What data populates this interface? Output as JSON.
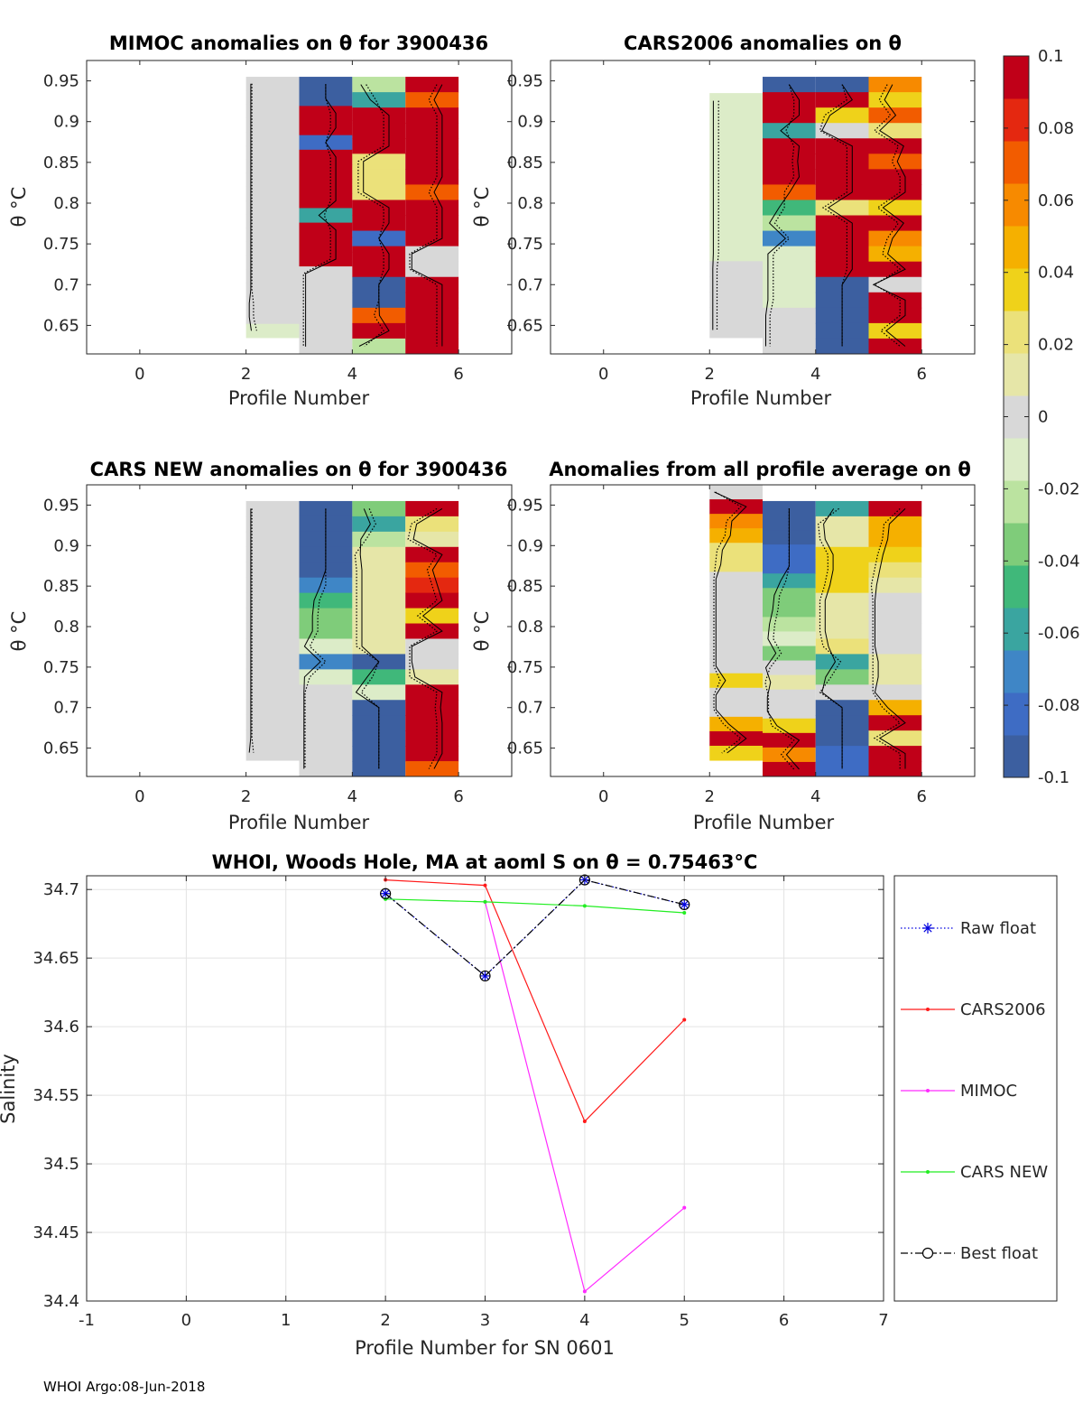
{
  "footer": "WHOI Argo:08-Jun-2018",
  "colorbar": {
    "ticks": [
      "0.1",
      "0.08",
      "0.06",
      "0.04",
      "0.02",
      "0",
      "-0.02",
      "-0.04",
      "-0.06",
      "-0.08",
      "-0.1"
    ],
    "range": [
      -0.1,
      0.1
    ],
    "colors": [
      "#3c5fa0",
      "#3e6cc4",
      "#3f86c6",
      "#3aa5a0",
      "#40b87a",
      "#7fcc7a",
      "#bbe3a0",
      "#dcecc8",
      "#d8d8d8",
      "#e6e6a8",
      "#ebe17a",
      "#efd21a",
      "#f5b000",
      "#f78a00",
      "#f25c00",
      "#e42810",
      "#c00018"
    ]
  },
  "panels": [
    {
      "title": "MIMOC anomalies on θ  for 3900436",
      "xlabel": "Profile Number",
      "ylabel": "θ °C",
      "xlim": [
        -1,
        7
      ],
      "ylim": [
        0.615,
        0.975
      ],
      "xticks": [
        "0",
        "2",
        "4",
        "6"
      ],
      "yticks": [
        "0.95",
        "0.9",
        "0.85",
        "0.8",
        "0.75",
        "0.7",
        "0.65"
      ],
      "columns": [
        {
          "profile": 2,
          "top": 0.955,
          "bottom": 0.635,
          "values": [
            0,
            0,
            0,
            0,
            0,
            0,
            0,
            0,
            0,
            0,
            0,
            0,
            0,
            0,
            0,
            0,
            -0.005,
            -0.005,
            -0.015
          ]
        },
        {
          "profile": 3,
          "top": 0.955,
          "bottom": 0.615,
          "values": [
            -0.09,
            -0.09,
            0.1,
            0.1,
            -0.085,
            0.1,
            0.1,
            0.1,
            0.1,
            -0.06,
            0.1,
            0.1,
            0.1,
            0.005,
            0.005,
            0.005,
            0.005,
            0.005,
            0.005
          ]
        },
        {
          "profile": 4,
          "top": 0.955,
          "bottom": 0.615,
          "values": [
            -0.025,
            -0.055,
            0.1,
            0.1,
            0.1,
            0.02,
            0.02,
            0.02,
            0.1,
            0.1,
            -0.085,
            0.1,
            0.1,
            -0.09,
            -0.09,
            0.07,
            0.1,
            -0.02
          ]
        },
        {
          "profile": 5,
          "top": 0.955,
          "bottom": 0.615,
          "values": [
            0.1,
            0.075,
            0.1,
            0.1,
            0.1,
            0.1,
            0.1,
            0.075,
            0.1,
            0.1,
            0.1,
            0.005,
            0.005,
            0.1,
            0.1,
            0.1,
            0.1,
            0.1
          ]
        }
      ]
    },
    {
      "title": "CARS2006 anomalies on θ",
      "xlabel": "Profile Number",
      "ylabel": "θ °C",
      "xlim": [
        -1,
        7
      ],
      "ylim": [
        0.615,
        0.975
      ],
      "xticks": [
        "0",
        "2",
        "4",
        "6"
      ],
      "yticks": [
        "0.95",
        "0.9",
        "0.85",
        "0.8",
        "0.75",
        "0.7",
        "0.65"
      ],
      "columns": [
        {
          "profile": 2,
          "top": 0.935,
          "bottom": 0.635,
          "values": [
            -0.01,
            -0.01,
            -0.01,
            -0.01,
            -0.01,
            -0.01,
            -0.01,
            -0.01,
            -0.01,
            -0.01,
            -0.01,
            -0.005,
            -0.005,
            -0.005,
            -0.005,
            -0.005
          ]
        },
        {
          "profile": 3,
          "top": 0.955,
          "bottom": 0.615,
          "values": [
            -0.09,
            0.1,
            0.1,
            -0.055,
            0.1,
            0.095,
            0.1,
            0.07,
            -0.05,
            -0.02,
            -0.07,
            -0.015,
            -0.015,
            -0.015,
            -0.015,
            -0.005,
            -0.005,
            -0.005
          ]
        },
        {
          "profile": 4,
          "top": 0.955,
          "bottom": 0.615,
          "values": [
            -0.09,
            0.1,
            0.03,
            0.005,
            0.1,
            0.1,
            0.1,
            0.1,
            0.025,
            0.1,
            0.1,
            0.1,
            0.1,
            -0.09,
            -0.09,
            -0.09,
            -0.09,
            -0.09
          ]
        },
        {
          "profile": 5,
          "top": 0.955,
          "bottom": 0.615,
          "values": [
            0.06,
            0.035,
            0.07,
            0.02,
            0.095,
            0.075,
            0.1,
            0.1,
            0.03,
            0.095,
            0.06,
            0.045,
            0.1,
            0.0,
            0.1,
            0.1,
            0.04,
            0.1
          ]
        }
      ]
    },
    {
      "title": "CARS NEW anomalies on θ for 3900436",
      "xlabel": "Profile Number",
      "ylabel": "θ °C",
      "xlim": [
        -1,
        7
      ],
      "ylim": [
        0.615,
        0.975
      ],
      "xticks": [
        "0",
        "2",
        "4",
        "6"
      ],
      "yticks": [
        "0.95",
        "0.9",
        "0.85",
        "0.8",
        "0.75",
        "0.7",
        "0.65"
      ],
      "columns": [
        {
          "profile": 2,
          "top": 0.955,
          "bottom": 0.635,
          "values": [
            0,
            0,
            0,
            0,
            0,
            0,
            0,
            0,
            0,
            0,
            0,
            0,
            0,
            0,
            0,
            0,
            -0.005
          ]
        },
        {
          "profile": 3,
          "top": 0.955,
          "bottom": 0.615,
          "values": [
            -0.09,
            -0.09,
            -0.09,
            -0.09,
            -0.09,
            -0.065,
            -0.045,
            -0.04,
            -0.04,
            -0.015,
            -0.065,
            -0.015,
            0.0,
            0.0,
            0.0,
            0.0,
            0.0,
            0.0
          ]
        },
        {
          "profile": 4,
          "top": 0.955,
          "bottom": 0.615,
          "values": [
            -0.035,
            -0.055,
            -0.025,
            0.01,
            0.015,
            0.015,
            0.015,
            0.015,
            0.015,
            0.015,
            -0.09,
            -0.045,
            -0.01,
            -0.09,
            -0.09,
            -0.09,
            -0.09,
            -0.09
          ]
        },
        {
          "profile": 5,
          "top": 0.955,
          "bottom": 0.615,
          "values": [
            0.1,
            0.02,
            0.01,
            0.1,
            0.07,
            0.085,
            0.1,
            0.04,
            0.1,
            0.005,
            0.005,
            0.015,
            0.1,
            0.095,
            0.1,
            0.1,
            0.1,
            0.075
          ]
        }
      ]
    },
    {
      "title": "Anomalies from all profile average on θ",
      "xlabel": "Profile Number",
      "ylabel": "θ °C",
      "xlim": [
        -1,
        7
      ],
      "ylim": [
        0.615,
        0.975
      ],
      "xticks": [
        "0",
        "2",
        "4",
        "6"
      ],
      "yticks": [
        "0.95",
        "0.9",
        "0.85",
        "0.8",
        "0.75",
        "0.7",
        "0.65"
      ],
      "columns": [
        {
          "profile": 2,
          "top": 0.975,
          "bottom": 0.635,
          "values": [
            0.0,
            0.1,
            0.055,
            0.05,
            0.025,
            0.02,
            0.005,
            0.005,
            0.005,
            0.005,
            0.005,
            0.005,
            0.005,
            0.035,
            0.005,
            0.005,
            0.045,
            0.1,
            0.04
          ]
        },
        {
          "profile": 3,
          "top": 0.955,
          "bottom": 0.615,
          "values": [
            -0.09,
            -0.09,
            -0.09,
            -0.085,
            -0.085,
            -0.055,
            -0.035,
            -0.03,
            -0.02,
            -0.015,
            -0.04,
            -0.005,
            0.01,
            0.0,
            0.0,
            0.03,
            0.1,
            0.06,
            0.1
          ]
        },
        {
          "profile": 4,
          "top": 0.955,
          "bottom": 0.615,
          "values": [
            -0.055,
            0.01,
            0.015,
            0.04,
            0.04,
            0.03,
            0.015,
            0.015,
            0.015,
            0.025,
            -0.06,
            -0.03,
            0.005,
            -0.09,
            -0.09,
            -0.09,
            -0.085,
            -0.085
          ]
        },
        {
          "profile": 5,
          "top": 0.955,
          "bottom": 0.615,
          "values": [
            0.1,
            0.05,
            0.045,
            0.03,
            0.02,
            0.01,
            0.005,
            0.005,
            0.005,
            0.005,
            0.015,
            0.015,
            0.005,
            0.045,
            0.1,
            0.02,
            0.1,
            0.1
          ]
        }
      ]
    }
  ],
  "salinity": {
    "title": "WHOI, Woods Hole, MA at aoml S on θ = 0.75463°C",
    "xlabel": "Profile Number for SN 0601",
    "ylabel": "Salinity",
    "xlim": [
      -1,
      7
    ],
    "ylim": [
      34.4,
      34.71
    ],
    "xticks": [
      "-1",
      "0",
      "1",
      "2",
      "3",
      "4",
      "5",
      "6",
      "7"
    ],
    "yticks": [
      "34.7",
      "34.65",
      "34.6",
      "34.55",
      "34.5",
      "34.45",
      "34.4"
    ],
    "series": [
      {
        "name": "Raw float",
        "color": "#0000e0",
        "style": "dotted",
        "marker": "star",
        "x": [
          2,
          3,
          4,
          5
        ],
        "y": [
          34.697,
          34.637,
          34.707,
          34.689
        ]
      },
      {
        "name": "CARS2006",
        "color": "#ff1a1a",
        "style": "solid",
        "marker": "dot",
        "x": [
          2,
          3,
          4,
          5
        ],
        "y": [
          34.707,
          34.703,
          34.531,
          34.605
        ]
      },
      {
        "name": "MIMOC",
        "color": "#ff2bff",
        "style": "solid",
        "marker": "dot",
        "x": [
          3,
          4,
          5
        ],
        "y": [
          34.691,
          34.407,
          34.468
        ]
      },
      {
        "name": "CARS NEW",
        "color": "#22ee22",
        "style": "solid",
        "marker": "dot",
        "x": [
          2,
          3,
          4,
          5
        ],
        "y": [
          34.693,
          34.691,
          34.688,
          34.683
        ]
      },
      {
        "name": "Best float",
        "color": "#000000",
        "style": "dashdot",
        "marker": "circle",
        "x": [
          2,
          3,
          4,
          5
        ],
        "y": [
          34.697,
          34.637,
          34.707,
          34.689
        ]
      }
    ]
  }
}
